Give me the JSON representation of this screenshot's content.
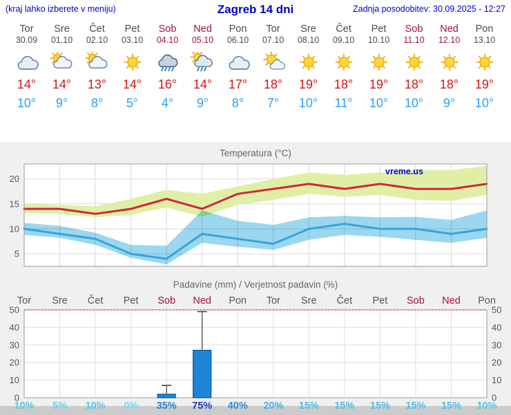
{
  "header": {
    "hint": "(kraj lahko izberete v meniju)",
    "title": "Zagreb 14 dni",
    "updated": "Zadnja posodobitev: 30.09.2025 - 12:27"
  },
  "colors": {
    "header_blue": "#0000cc",
    "tmax_red": "#d01818",
    "tmin_blue": "#2f9ff2",
    "weekend_red": "#a1123a",
    "bar_blue": "#1e86d8",
    "section_gray": "#f0f0f0"
  },
  "days": [
    {
      "name": "Tor",
      "date": "30.09",
      "weekend": false,
      "icon": "cloudy",
      "tmax": "14°",
      "tmin": "10°"
    },
    {
      "name": "Sre",
      "date": "01.10",
      "weekend": false,
      "icon": "partly-cloudy",
      "tmax": "14°",
      "tmin": "9°"
    },
    {
      "name": "Čet",
      "date": "02.10",
      "weekend": false,
      "icon": "partly-cloudy",
      "tmax": "13°",
      "tmin": "8°"
    },
    {
      "name": "Pet",
      "date": "03.10",
      "weekend": false,
      "icon": "sunny",
      "tmax": "14°",
      "tmin": "5°"
    },
    {
      "name": "Sob",
      "date": "04.10",
      "weekend": true,
      "icon": "rain",
      "tmax": "16°",
      "tmin": "4°"
    },
    {
      "name": "Ned",
      "date": "05.10",
      "weekend": true,
      "icon": "rain-sun",
      "tmax": "14°",
      "tmin": "9°"
    },
    {
      "name": "Pon",
      "date": "06.10",
      "weekend": false,
      "icon": "cloudy",
      "tmax": "17°",
      "tmin": "8°"
    },
    {
      "name": "Tor",
      "date": "07.10",
      "weekend": false,
      "icon": "mostly-sunny",
      "tmax": "18°",
      "tmin": "7°"
    },
    {
      "name": "Sre",
      "date": "08.10",
      "weekend": false,
      "icon": "sunny",
      "tmax": "19°",
      "tmin": "10°"
    },
    {
      "name": "Čet",
      "date": "09.10",
      "weekend": false,
      "icon": "sunny",
      "tmax": "18°",
      "tmin": "11°"
    },
    {
      "name": "Pet",
      "date": "10.10",
      "weekend": false,
      "icon": "sunny",
      "tmax": "19°",
      "tmin": "10°"
    },
    {
      "name": "Sob",
      "date": "11.10",
      "weekend": true,
      "icon": "sunny",
      "tmax": "18°",
      "tmin": "10°"
    },
    {
      "name": "Ned",
      "date": "12.10",
      "weekend": true,
      "icon": "sunny",
      "tmax": "18°",
      "tmin": "9°"
    },
    {
      "name": "Pon",
      "date": "13.10",
      "weekend": false,
      "icon": "sunny",
      "tmax": "19°",
      "tmin": "10°"
    }
  ],
  "chart_data": [
    {
      "type": "line",
      "title": "Temperatura (°C)",
      "watermark": "vreme.us",
      "x_labels": [
        "Tor",
        "Sre",
        "Čet",
        "Pet",
        "Sob",
        "Ned",
        "Pon",
        "Tor",
        "Sre",
        "Čet",
        "Pet",
        "Sob",
        "Ned",
        "Pon"
      ],
      "ylim": [
        2.5,
        23
      ],
      "yticks": [
        5,
        10,
        15,
        20
      ],
      "grid": true,
      "legend_position": "none",
      "series": [
        {
          "name": "max-temperature",
          "color": "#cf2740",
          "values": [
            14,
            14,
            13,
            14,
            16,
            14,
            17,
            18,
            19,
            18,
            19,
            18,
            18,
            19
          ]
        },
        {
          "name": "min-temperature",
          "color": "#36a3dd",
          "values": [
            10,
            9,
            8,
            5,
            4,
            9,
            8,
            7,
            10,
            11,
            10,
            10,
            9,
            10
          ]
        }
      ],
      "bands": [
        {
          "name": "max-range",
          "color": "#dff0a6",
          "upper": [
            15,
            14.8,
            14.5,
            16,
            17.8,
            17,
            18.5,
            20,
            21.3,
            20.8,
            21.3,
            21.8,
            21.8,
            22.6
          ],
          "lower": [
            13.2,
            13,
            12.3,
            12.8,
            14.3,
            12.4,
            14.8,
            15.8,
            17,
            16.4,
            16.8,
            15.8,
            15.6,
            16.8
          ]
        },
        {
          "name": "min-range",
          "color": "#9bd7ef",
          "upper": [
            11.2,
            10.6,
            9.2,
            6.8,
            6.6,
            13.7,
            11.6,
            10.8,
            12.3,
            12.6,
            12.3,
            12.4,
            11.8,
            13.7
          ],
          "lower": [
            8.8,
            8.2,
            6.8,
            4.2,
            2.9,
            7.2,
            6.4,
            5.8,
            7.8,
            8.8,
            8.4,
            7.8,
            7.2,
            8.2
          ]
        }
      ]
    },
    {
      "type": "bar",
      "title": "Padavine (mm) / Verjetnost padavin (%)",
      "x_labels": [
        "Tor",
        "Sre",
        "Čet",
        "Pet",
        "Sob",
        "Ned",
        "Pon",
        "Tor",
        "Sre",
        "Čet",
        "Pet",
        "Sob",
        "Ned",
        "Pon"
      ],
      "ylim": [
        0,
        50
      ],
      "yticks": [
        0,
        10,
        20,
        30,
        40,
        50
      ],
      "grid": true,
      "bar_color": "#1e86d8",
      "values": [
        0,
        0,
        0,
        0,
        2,
        27,
        0,
        0,
        0,
        0,
        0,
        0,
        0,
        0
      ],
      "whiskers": [
        0,
        0,
        0,
        0,
        7,
        49,
        0,
        0,
        0,
        0,
        0,
        0,
        0,
        0
      ],
      "limit_line": {
        "value": 50,
        "color": "#ee3333",
        "style": "dashed"
      },
      "probabilities": [
        {
          "label": "10%",
          "color": "#55c9e9"
        },
        {
          "label": "5%",
          "color": "#62d3ee"
        },
        {
          "label": "10%",
          "color": "#55c9e9"
        },
        {
          "label": "0%",
          "color": "#70dcf2"
        },
        {
          "label": "35%",
          "color": "#2b7fd0"
        },
        {
          "label": "75%",
          "color": "#1638b8"
        },
        {
          "label": "40%",
          "color": "#2e8ad8"
        },
        {
          "label": "20%",
          "color": "#43b4e2"
        },
        {
          "label": "15%",
          "color": "#4cc0e6"
        },
        {
          "label": "15%",
          "color": "#4cc0e6"
        },
        {
          "label": "15%",
          "color": "#4cc0e6"
        },
        {
          "label": "15%",
          "color": "#4cc0e6"
        },
        {
          "label": "15%",
          "color": "#4cc0e6"
        },
        {
          "label": "10%",
          "color": "#55c9e9"
        }
      ]
    }
  ]
}
